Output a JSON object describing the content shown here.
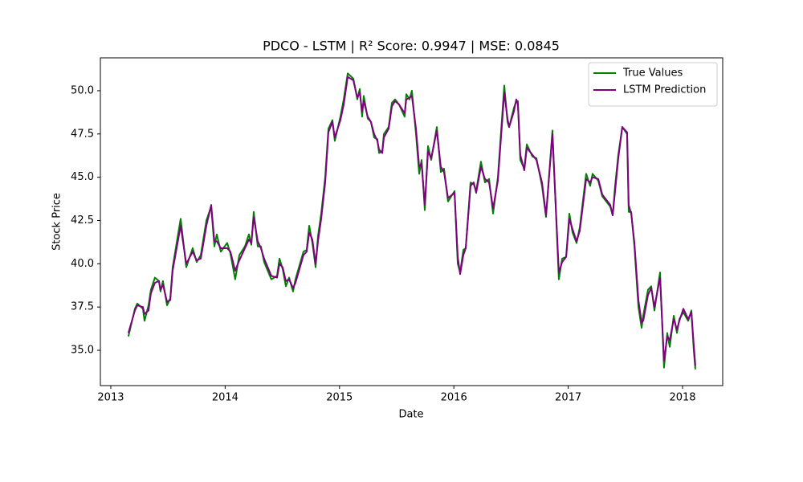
{
  "chart_data": {
    "type": "line",
    "title": "PDCO - LSTM | R² Score: 0.9947 | MSE: 0.0845",
    "xlabel": "Date",
    "ylabel": "Stock Price",
    "x": [
      2013.154,
      2013.211,
      2013.232,
      2013.281,
      2013.295,
      2013.33,
      2013.351,
      2013.386,
      2013.421,
      2013.435,
      2013.456,
      2013.492,
      2013.52,
      2013.541,
      2013.611,
      2013.66,
      2013.716,
      2013.751,
      2013.787,
      2013.836,
      2013.878,
      2013.906,
      2013.927,
      2013.962,
      2014.018,
      2014.046,
      2014.088,
      2014.124,
      2014.173,
      2014.208,
      2014.229,
      2014.25,
      2014.285,
      2014.313,
      2014.341,
      2014.404,
      2014.454,
      2014.475,
      2014.503,
      2014.531,
      2014.559,
      2014.594,
      2014.615,
      2014.685,
      2014.713,
      2014.735,
      2014.763,
      2014.791,
      2014.812,
      2014.84,
      2014.875,
      2014.903,
      2014.938,
      2014.959,
      2015.008,
      2015.037,
      2015.072,
      2015.121,
      2015.156,
      2015.177,
      2015.198,
      2015.212,
      2015.247,
      2015.275,
      2015.303,
      2015.331,
      2015.346,
      2015.374,
      2015.388,
      2015.43,
      2015.458,
      2015.486,
      2015.521,
      2015.57,
      2015.584,
      2015.612,
      2015.633,
      2015.669,
      2015.697,
      2015.718,
      2015.746,
      2015.774,
      2015.802,
      2015.851,
      2015.886,
      2015.914,
      2015.949,
      2016.006,
      2016.034,
      2016.055,
      2016.083,
      2016.104,
      2016.146,
      2016.174,
      2016.195,
      2016.237,
      2016.272,
      2016.308,
      2016.343,
      2016.385,
      2016.441,
      2016.469,
      2016.483,
      2016.525,
      2016.546,
      2016.56,
      2016.581,
      2016.616,
      2016.638,
      2016.687,
      2016.722,
      2016.771,
      2016.806,
      2016.862,
      2016.918,
      2016.947,
      2016.982,
      2017.01,
      2017.038,
      2017.073,
      2017.101,
      2017.157,
      2017.192,
      2017.213,
      2017.263,
      2017.298,
      2017.368,
      2017.389,
      2017.41,
      2017.438,
      2017.473,
      2017.515,
      2017.529,
      2017.551,
      2017.579,
      2017.614,
      2017.642,
      2017.656,
      2017.698,
      2017.726,
      2017.754,
      2017.803,
      2017.838,
      2017.866,
      2017.888,
      2017.923,
      2017.951,
      2017.972,
      2018.007,
      2018.049,
      2018.077,
      2018.098,
      2018.112
    ],
    "series": [
      {
        "name": "True Values",
        "color": "#008000",
        "values": [
          35.8,
          37.4,
          37.7,
          37.4,
          36.7,
          37.6,
          38.5,
          39.2,
          39.0,
          38.4,
          39.0,
          37.6,
          38.0,
          39.8,
          42.6,
          39.8,
          40.9,
          40.1,
          40.5,
          42.5,
          43.3,
          41.0,
          41.7,
          40.7,
          41.2,
          40.6,
          39.1,
          40.5,
          41.0,
          41.7,
          41.1,
          43.0,
          41.0,
          41.0,
          40.1,
          39.1,
          39.3,
          40.3,
          39.7,
          38.7,
          39.2,
          38.4,
          39.1,
          40.7,
          40.8,
          42.2,
          41.2,
          39.8,
          41.6,
          42.9,
          45.0,
          47.8,
          48.3,
          47.1,
          48.5,
          49.5,
          51.0,
          50.7,
          49.5,
          50.1,
          48.5,
          49.7,
          48.4,
          48.2,
          47.3,
          47.2,
          46.4,
          46.5,
          47.5,
          47.9,
          49.3,
          49.5,
          49.2,
          48.5,
          49.8,
          49.5,
          50.0,
          47.5,
          45.2,
          46.0,
          43.1,
          46.8,
          46.0,
          47.9,
          45.3,
          45.5,
          43.6,
          44.2,
          40.0,
          39.5,
          40.8,
          40.9,
          44.7,
          44.6,
          44.2,
          45.9,
          44.7,
          44.9,
          42.9,
          45.0,
          50.3,
          48.2,
          47.9,
          49.0,
          49.4,
          49.4,
          46.0,
          45.5,
          46.9,
          46.2,
          46.1,
          44.5,
          42.7,
          47.7,
          39.1,
          40.3,
          40.4,
          42.9,
          41.8,
          41.2,
          42.1,
          45.2,
          44.5,
          45.2,
          44.8,
          43.9,
          43.3,
          42.8,
          44.5,
          46.3,
          47.9,
          47.5,
          43.0,
          43.0,
          41.0,
          37.5,
          36.3,
          37.0,
          38.5,
          38.7,
          37.3,
          39.5,
          34.0,
          36.0,
          35.2,
          37.0,
          36.0,
          36.8,
          37.2,
          36.7,
          37.3,
          35.0,
          33.9
        ]
      },
      {
        "name": "LSTM Prediction",
        "color": "#800080",
        "values": [
          36.0,
          37.3,
          37.6,
          37.5,
          37.1,
          37.3,
          38.3,
          38.9,
          39.0,
          38.5,
          38.8,
          37.8,
          37.9,
          39.6,
          42.2,
          40.0,
          40.7,
          40.2,
          40.3,
          42.2,
          43.4,
          41.3,
          41.3,
          40.9,
          40.9,
          40.7,
          39.6,
          40.2,
          40.9,
          41.4,
          41.2,
          42.7,
          41.3,
          40.9,
          40.3,
          39.3,
          39.2,
          40.0,
          39.8,
          39.0,
          39.1,
          38.6,
          38.9,
          40.5,
          40.7,
          41.8,
          41.4,
          40.0,
          41.3,
          42.6,
          44.7,
          47.6,
          48.2,
          47.3,
          48.3,
          49.2,
          50.8,
          50.6,
          49.6,
          49.9,
          48.8,
          49.4,
          48.5,
          48.2,
          47.5,
          47.1,
          46.6,
          46.4,
          47.3,
          47.8,
          49.1,
          49.4,
          49.2,
          48.7,
          49.5,
          49.6,
          49.7,
          47.8,
          45.6,
          45.8,
          43.4,
          46.5,
          46.1,
          47.7,
          45.6,
          45.3,
          43.8,
          44.1,
          40.4,
          39.4,
          40.5,
          40.9,
          44.5,
          44.7,
          44.1,
          45.6,
          44.9,
          44.7,
          43.2,
          44.8,
          49.9,
          48.4,
          47.9,
          48.8,
          49.5,
          49.2,
          46.3,
          45.4,
          46.7,
          46.3,
          46.0,
          44.7,
          42.8,
          47.5,
          39.5,
          40.1,
          40.4,
          42.6,
          42.0,
          41.3,
          41.9,
          44.9,
          44.7,
          45.0,
          44.9,
          44.0,
          43.4,
          42.8,
          44.2,
          46.1,
          47.9,
          47.6,
          43.4,
          42.9,
          41.2,
          37.9,
          36.6,
          36.7,
          38.2,
          38.6,
          37.5,
          39.2,
          34.4,
          35.8,
          35.6,
          36.8,
          36.2,
          36.7,
          37.4,
          36.8,
          37.2,
          35.3,
          34.1
        ]
      }
    ],
    "xlim": [
      2012.909,
      2018.351
    ],
    "xticks": [
      2013,
      2014,
      2015,
      2016,
      2017,
      2018
    ],
    "ylim": [
      32.96,
      51.9
    ],
    "yticks": [
      {
        "value": 35,
        "label": "35.0"
      },
      37.5,
      {
        "value": 40,
        "label": "40.0"
      },
      42.5,
      {
        "value": 45,
        "label": "45.0"
      },
      47.5,
      {
        "value": 50,
        "label": "50.0"
      }
    ],
    "grid": false,
    "legend": "upper right"
  }
}
